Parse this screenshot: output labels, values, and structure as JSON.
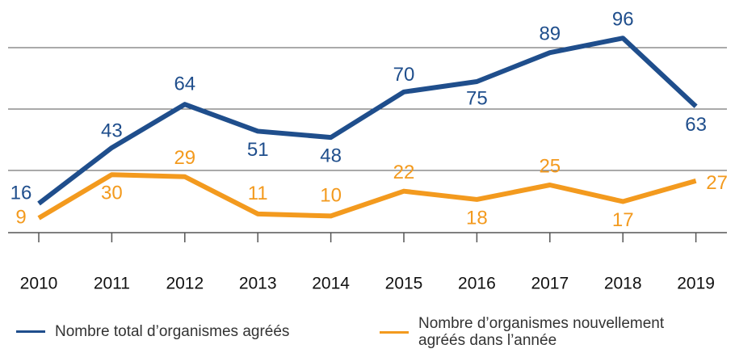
{
  "chart_data": {
    "type": "line",
    "categories": [
      "2010",
      "2011",
      "2012",
      "2013",
      "2014",
      "2015",
      "2016",
      "2017",
      "2018",
      "2019"
    ],
    "series": [
      {
        "name": "Nombre total d’organismes agréés",
        "color": "#1f4e8c",
        "values": [
          16,
          43,
          64,
          51,
          48,
          70,
          75,
          89,
          96,
          63
        ]
      },
      {
        "name": "Nombre d’organismes nouvellement agréés dans l’année",
        "color": "#f39a1e",
        "values": [
          9,
          30,
          29,
          11,
          10,
          22,
          18,
          25,
          17,
          27
        ]
      }
    ],
    "ylim": [
      0,
      100
    ]
  }
}
